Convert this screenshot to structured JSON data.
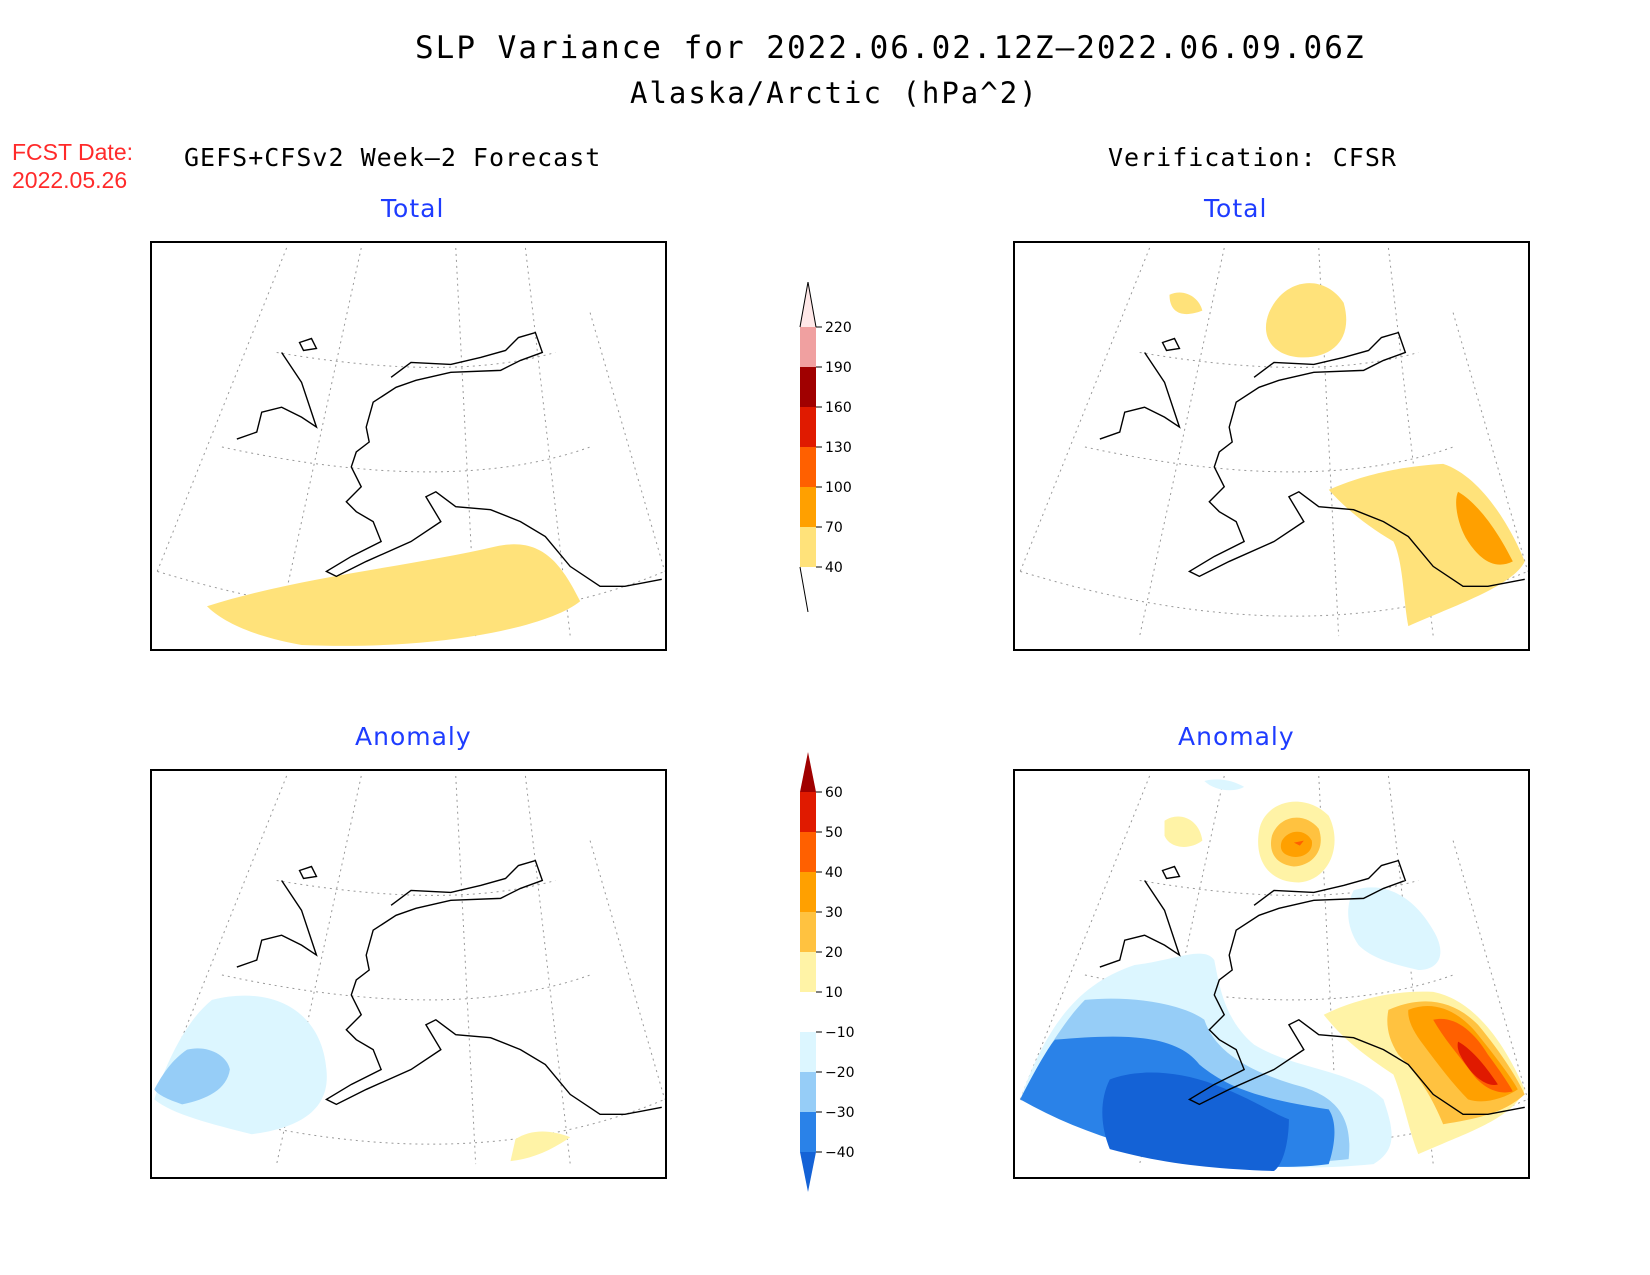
{
  "header": {
    "title": "SLP Variance for 2022.06.02.12Z–2022.06.09.06Z",
    "subtitle": "Alaska/Arctic (hPa^2)",
    "fcst_date_label": "FCST Date:",
    "fcst_date_value": "2022.05.26",
    "left_heading": "GEFS+CFSv2 Week–2 Forecast",
    "right_heading": "Verification: CFSR"
  },
  "panels": {
    "forecast_total": {
      "label": "Total"
    },
    "verification_total": {
      "label": "Total"
    },
    "forecast_anomaly": {
      "label": "Anomaly"
    },
    "verification_anomaly": {
      "label": "Anomaly"
    }
  },
  "colorbars": {
    "total": {
      "labels": [
        "40",
        "70",
        "100",
        "130",
        "160",
        "190",
        "220"
      ],
      "colors": [
        "#ffe27a",
        "#ffa000",
        "#ff6000",
        "#e01a00",
        "#a00000",
        "#f0a0a0",
        "#ffe8e8"
      ]
    },
    "anomaly": {
      "labels": [
        "−40",
        "−30",
        "−20",
        "−10",
        "10",
        "20",
        "30",
        "40",
        "50",
        "60"
      ],
      "colors": [
        "#1462d6",
        "#2a82e8",
        "#96cdf7",
        "#dcf6ff",
        "#ffffff",
        "#fff3a6",
        "#ffc240",
        "#ffa000",
        "#ff6000",
        "#e01a00",
        "#a00000"
      ]
    }
  }
}
